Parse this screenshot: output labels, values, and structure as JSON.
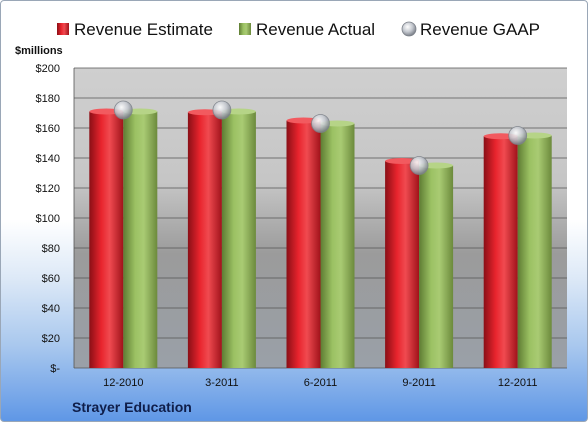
{
  "company": "Strayer Education",
  "chart_data": {
    "type": "bar",
    "title": "",
    "ylabel": "$millions",
    "xlabel": "",
    "categories": [
      "12-2010",
      "3-2011",
      "6-2011",
      "9-2011",
      "12-2011"
    ],
    "series": [
      {
        "name": "Revenue Estimate",
        "kind": "bar",
        "color": "#d92027",
        "values": [
          171,
          170.5,
          165,
          138,
          154.5
        ]
      },
      {
        "name": "Revenue Actual",
        "kind": "bar",
        "color": "#8cb15a",
        "values": [
          171,
          171,
          163,
          135,
          155
        ]
      },
      {
        "name": "Revenue GAAP",
        "kind": "marker",
        "color": "#c8ccd2",
        "values": [
          172,
          172,
          163,
          135,
          155
        ]
      }
    ],
    "ylim": [
      0,
      200
    ],
    "yticks": [
      0,
      20,
      40,
      60,
      80,
      100,
      120,
      140,
      160,
      180,
      200
    ],
    "ytick_labels": [
      "$-",
      "$20",
      "$40",
      "$60",
      "$80",
      "$100",
      "$120",
      "$140",
      "$160",
      "$180",
      "$200"
    ],
    "grid": true,
    "legend": "top"
  }
}
